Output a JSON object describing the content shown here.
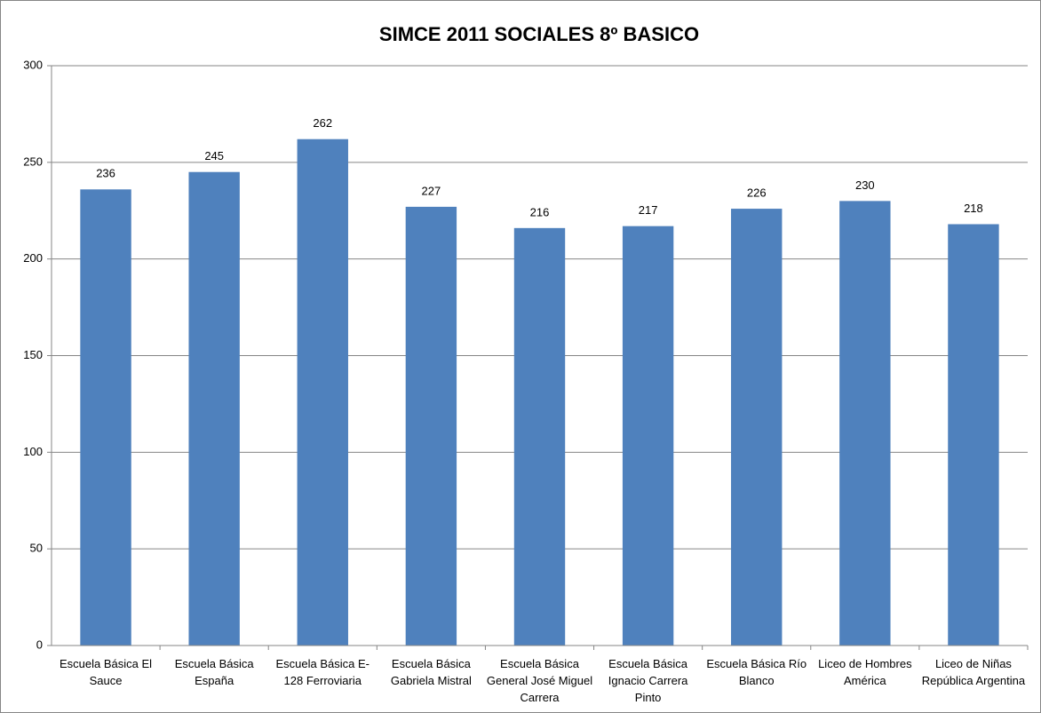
{
  "chart_data": {
    "type": "bar",
    "title": "SIMCE 2011 SOCIALES 8º BASICO",
    "categories": [
      "Escuela Básica El Sauce",
      "Escuela Básica España",
      "Escuela Básica E-128 Ferroviaria",
      "Escuela Básica Gabriela Mistral",
      "Escuela Básica General José Miguel Carrera",
      "Escuela Básica Ignacio Carrera Pinto",
      "Escuela Básica Río Blanco",
      "Liceo de Hombres América",
      "Liceo de Niñas República Argentina"
    ],
    "values": [
      236,
      245,
      262,
      227,
      216,
      217,
      226,
      230,
      218
    ],
    "color": "#4f81bd",
    "ylim": [
      0,
      300
    ],
    "yticks": [
      0,
      50,
      100,
      150,
      200,
      250,
      300
    ],
    "grid": true
  }
}
